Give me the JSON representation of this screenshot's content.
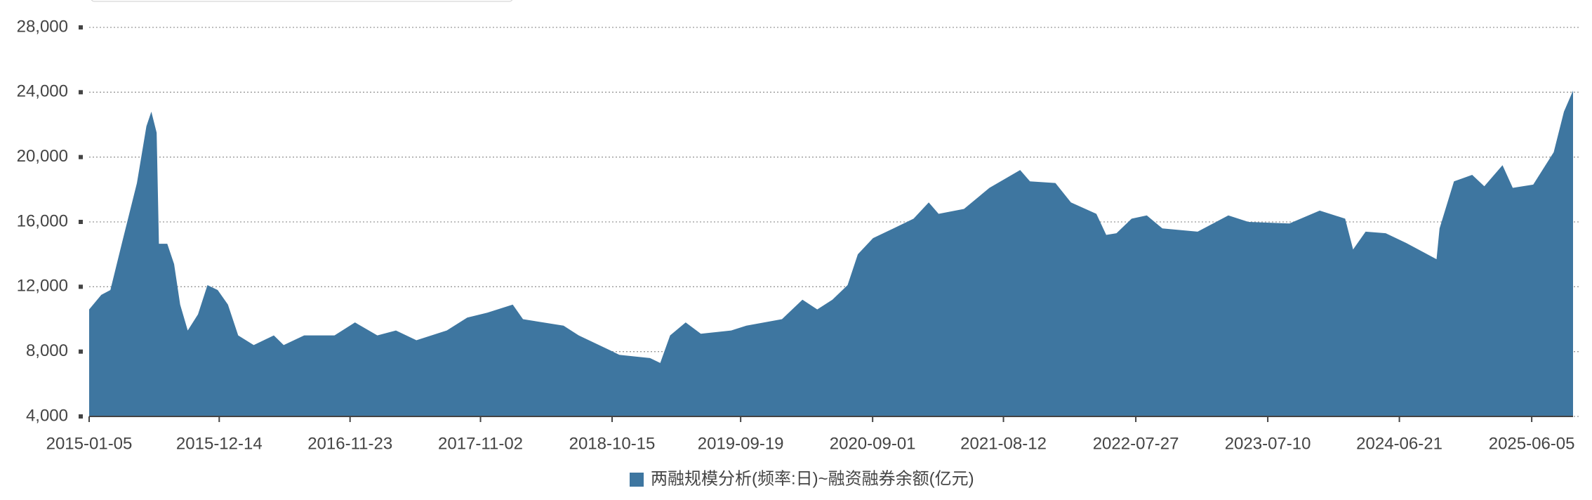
{
  "chart_data": {
    "type": "area",
    "x": [
      "2015-01-05",
      "2015-02-06",
      "2015-03-02",
      "2015-04-01",
      "2015-05-11",
      "2015-06-05",
      "2015-06-18",
      "2015-07-02",
      "2015-07-08",
      "2015-07-30",
      "2015-08-17",
      "2015-09-02",
      "2015-09-22",
      "2015-10-19",
      "2015-11-13",
      "2015-12-10",
      "2016-01-06",
      "2016-02-02",
      "2016-03-14",
      "2016-05-06",
      "2016-06-01",
      "2016-07-25",
      "2016-10-13",
      "2016-12-06",
      "2017-02-03",
      "2017-03-24",
      "2017-05-17",
      "2017-08-05",
      "2017-09-28",
      "2017-11-20",
      "2018-01-26",
      "2018-02-22",
      "2018-06-09",
      "2018-07-19",
      "2018-10-08",
      "2018-11-03",
      "2019-01-23",
      "2019-02-19",
      "2019-03-17",
      "2019-04-27",
      "2019-06-06",
      "2019-08-25",
      "2019-10-04",
      "2020-01-06",
      "2020-02-29",
      "2020-04-08",
      "2020-05-18",
      "2020-06-27",
      "2020-07-24",
      "2020-09-02",
      "2020-10-26",
      "2020-12-18",
      "2021-01-27",
      "2021-02-22",
      "2021-04-30",
      "2021-07-06",
      "2021-09-25",
      "2021-10-21",
      "2021-12-27",
      "2022-02-06",
      "2022-04-14",
      "2022-05-10",
      "2022-06-06",
      "2022-07-16",
      "2022-08-25",
      "2022-10-05",
      "2023-01-06",
      "2023-03-28",
      "2023-05-20",
      "2023-09-05",
      "2023-11-24",
      "2024-01-30",
      "2024-02-20",
      "2024-03-24",
      "2024-05-16",
      "2024-07-09",
      "2024-09-27",
      "2024-10-05",
      "2024-11-12",
      "2024-12-30",
      "2025-01-31",
      "2025-03-20",
      "2025-04-16",
      "2025-06-09",
      "2025-08-02",
      "2025-08-29",
      "2025-09-22"
    ],
    "series": [
      {
        "name": "两融规模分析(频率:日)~融资融券余额(亿元)",
        "color": "#3e76a0",
        "values": [
          10600,
          11500,
          11800,
          14650,
          18400,
          21900,
          22800,
          21500,
          14650,
          14650,
          13400,
          10900,
          9300,
          10300,
          12100,
          11800,
          10900,
          9000,
          8400,
          9000,
          8400,
          9000,
          9000,
          9800,
          9000,
          9300,
          8700,
          9300,
          10100,
          10400,
          10900,
          10000,
          9600,
          9000,
          8100,
          7800,
          7600,
          7300,
          9000,
          9800,
          9100,
          9300,
          9600,
          10000,
          11200,
          10600,
          11200,
          12100,
          14000,
          15000,
          15600,
          16200,
          17200,
          16500,
          16800,
          18100,
          19200,
          18500,
          18400,
          17200,
          16500,
          15200,
          15300,
          16200,
          16400,
          15600,
          15400,
          16400,
          16000,
          15900,
          16700,
          16200,
          14300,
          15400,
          15300,
          14700,
          13700,
          15600,
          18500,
          18900,
          18200,
          19500,
          18100,
          18300,
          20300,
          22800,
          24100
        ]
      }
    ],
    "xlim": [
      "2015-01-05",
      "2025-09-22"
    ],
    "xticks": [
      "2015-01-05",
      "2015-12-14",
      "2016-11-23",
      "2017-11-02",
      "2018-10-15",
      "2019-09-19",
      "2020-09-01",
      "2021-08-12",
      "2022-07-27",
      "2023-07-10",
      "2024-06-21",
      "2025-06-05"
    ],
    "ylim": [
      4000,
      28000
    ],
    "yticks": [
      {
        "value": 4000,
        "label": "4,000"
      },
      {
        "value": 8000,
        "label": "8,000"
      },
      {
        "value": 12000,
        "label": "12,000"
      },
      {
        "value": 16000,
        "label": "16,000"
      },
      {
        "value": 20000,
        "label": "20,000"
      },
      {
        "value": 24000,
        "label": "24,000"
      },
      {
        "value": 28000,
        "label": "28,000"
      }
    ],
    "grid": true
  }
}
